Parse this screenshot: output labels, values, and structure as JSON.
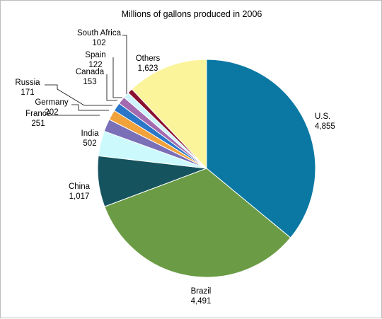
{
  "chart_data": {
    "type": "pie",
    "title": "Millions of gallons produced in 2006",
    "slices": [
      {
        "label": "U.S.",
        "value_text": "4,855",
        "value": 4855,
        "color": "#0b78a3"
      },
      {
        "label": "Brazil",
        "value_text": "4,491",
        "value": 4491,
        "color": "#6b9c45"
      },
      {
        "label": "China",
        "value_text": "1,017",
        "value": 1017,
        "color": "#15545f"
      },
      {
        "label": "India",
        "value_text": "502",
        "value": 502,
        "color": "#ccfafc"
      },
      {
        "label": "France",
        "value_text": "251",
        "value": 251,
        "color": "#7a70b8"
      },
      {
        "label": "Germany",
        "value_text": "202",
        "value": 202,
        "color": "#f2a23a"
      },
      {
        "label": "Russia",
        "value_text": "171",
        "value": 171,
        "color": "#2a76c8"
      },
      {
        "label": "Canada",
        "value_text": "153",
        "value": 153,
        "color": "#a36ab0"
      },
      {
        "label": "Spain",
        "value_text": "122",
        "value": 122,
        "color": "#cdf4fb"
      },
      {
        "label": "South Africa",
        "value_text": "102",
        "value": 102,
        "color": "#8a1230"
      },
      {
        "label": "Others",
        "value_text": "1,623",
        "value": 1623,
        "color": "#fbf49a"
      }
    ]
  }
}
